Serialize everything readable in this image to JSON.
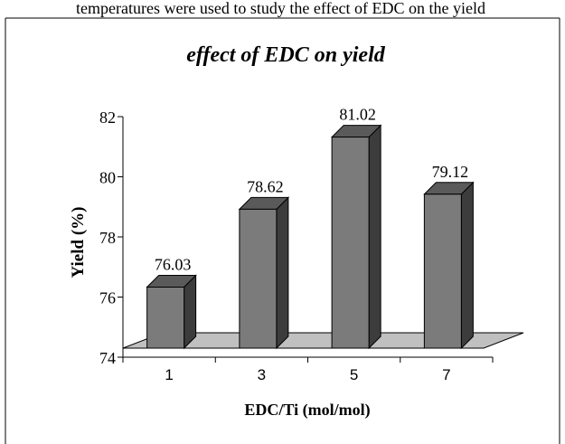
{
  "caption_fragment": "temperatures were used to study the effect of EDC on the yield",
  "chart_data": {
    "type": "bar",
    "title": "effect of EDC on yield",
    "xlabel": "EDC/Ti (mol/mol)",
    "ylabel": "Yield (%)",
    "categories": [
      "1",
      "3",
      "5",
      "7"
    ],
    "values": [
      76.03,
      78.62,
      81.02,
      79.12
    ],
    "value_labels": [
      "76.03",
      "78.62",
      "81.02",
      "79.12"
    ],
    "ylim": [
      74,
      82
    ],
    "yticks": [
      "74",
      "76",
      "78",
      "80",
      "82"
    ],
    "grid": false,
    "legend": "none",
    "style": "3d-column",
    "colors": {
      "bar_front": "#7b7b7b",
      "bar_side": "#3c3c3c",
      "bar_top": "#5a5a5a",
      "floor": "#c0c0c0",
      "border": "#000000"
    }
  }
}
